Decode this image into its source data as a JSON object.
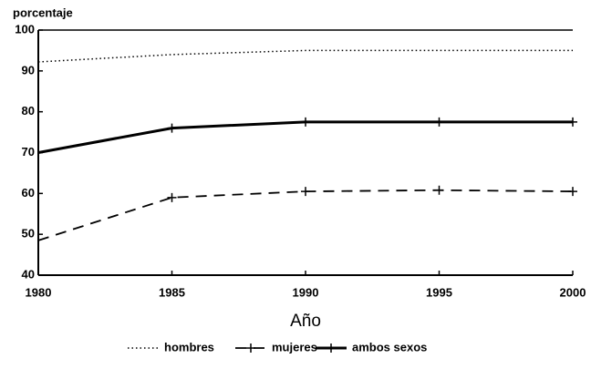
{
  "chart_data": {
    "type": "line",
    "ylabel": "porcentaje",
    "xlabel": "Año",
    "x": [
      1980,
      1985,
      1990,
      1995,
      2000
    ],
    "xlim": [
      1980,
      2000
    ],
    "xticks": [
      1980,
      1985,
      1990,
      1995,
      2000
    ],
    "ylim": [
      40,
      100
    ],
    "yticks": [
      40,
      50,
      60,
      70,
      80,
      90,
      100
    ],
    "legend": "bottom",
    "series": [
      {
        "name": "hombres",
        "color": "#000000",
        "dash": "dotted",
        "marker": false,
        "values": [
          92.2,
          94,
          95,
          95,
          95
        ]
      },
      {
        "name": "mujeres",
        "color": "#000000",
        "dash": "dashed",
        "marker": true,
        "values": [
          48.5,
          59,
          60.5,
          60.8,
          60.5
        ]
      },
      {
        "name": "ambos sexos",
        "color": "#000000",
        "dash": "solid",
        "marker": true,
        "values": [
          70,
          76,
          77.5,
          77.5,
          77.5
        ]
      }
    ]
  }
}
